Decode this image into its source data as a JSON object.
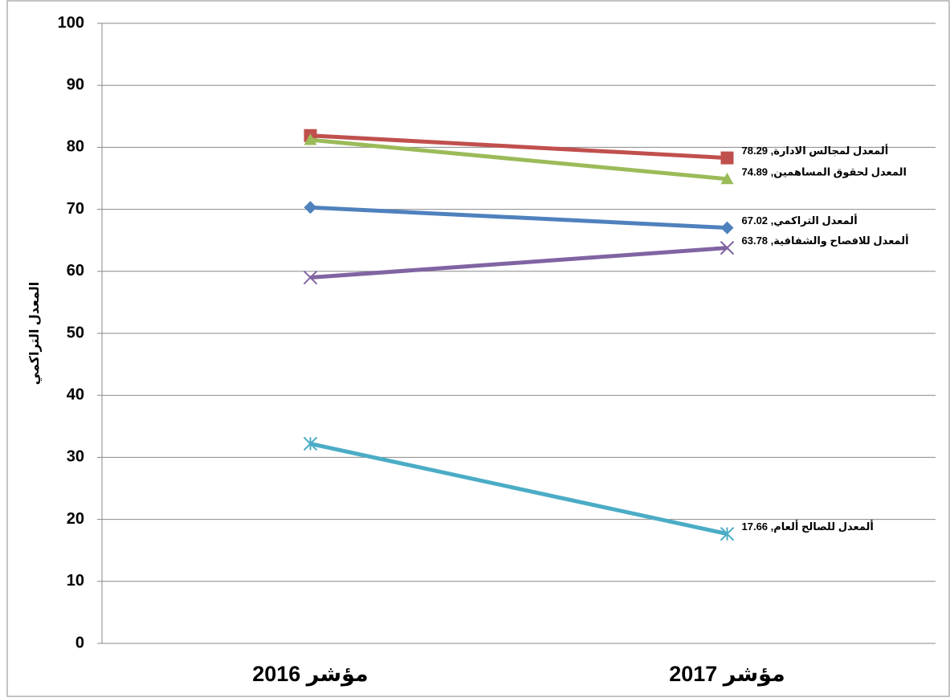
{
  "chart_data": {
    "type": "line",
    "y_label": "المعدل التراكمي",
    "categories": [
      "مؤشر 2016",
      "مؤشر 2017"
    ],
    "ylim": [
      0,
      100
    ],
    "yticks": [
      0,
      10,
      20,
      30,
      40,
      50,
      60,
      70,
      80,
      90,
      100
    ],
    "grid": true,
    "series": [
      {
        "name": "ألمعدل لمجالس الادارة",
        "color": "#c0504d",
        "marker": "square",
        "values": [
          81.9,
          78.29
        ],
        "value_labels": [
          null,
          "ألمعدل لمجالس الادارة, 78.29"
        ]
      },
      {
        "name": "المعدل لحقوق المساهمين",
        "color": "#9bbb59",
        "marker": "triangle",
        "values": [
          81.2,
          74.89
        ],
        "value_labels": [
          null,
          "المعدل لحقوق المساهمين, 74.89"
        ]
      },
      {
        "name": "ألمعدل التراكمي",
        "color": "#4f81bd",
        "marker": "diamond",
        "values": [
          70.3,
          67.02
        ],
        "value_labels": [
          null,
          "ألمعدل التراكمي, 67.02"
        ]
      },
      {
        "name": "ألمعدل للافصاح والشفافية",
        "color": "#8064a2",
        "marker": "x",
        "values": [
          59,
          63.78
        ],
        "value_labels": [
          null,
          "ألمعدل للافصاح والشفافية, 63.78"
        ]
      },
      {
        "name": "ألمعدل للصالح ألعام",
        "color": "#4bacc6",
        "marker": "star",
        "values": [
          32.2,
          17.66
        ],
        "value_labels": [
          null,
          "ألمعدل للصالح ألعام, 17.66"
        ]
      }
    ]
  }
}
